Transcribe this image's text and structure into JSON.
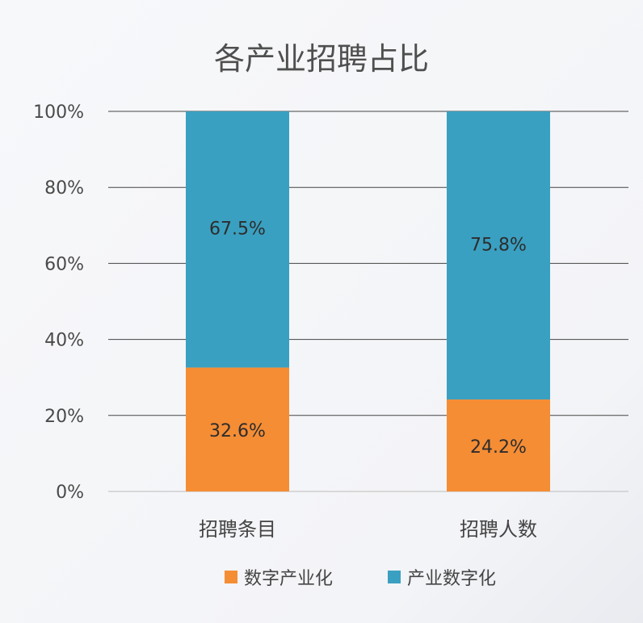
{
  "chart_data": {
    "type": "bar",
    "stacked": true,
    "title": "各产业招聘占比",
    "categories": [
      "招聘条目",
      "招聘人数"
    ],
    "series": [
      {
        "name": "数字产业化",
        "values": [
          32.6,
          24.2
        ],
        "labels": [
          "32.6%",
          "24.2%"
        ],
        "color": "#f58d35"
      },
      {
        "name": "产业数字化",
        "values": [
          67.5,
          75.8
        ],
        "labels": [
          "67.5%",
          "75.8%"
        ],
        "color": "#3aa0c1"
      }
    ],
    "yticks": [
      "0%",
      "20%",
      "40%",
      "60%",
      "80%",
      "100%"
    ],
    "ylim": [
      0,
      100
    ],
    "legend_position": "bottom",
    "grid": true
  }
}
